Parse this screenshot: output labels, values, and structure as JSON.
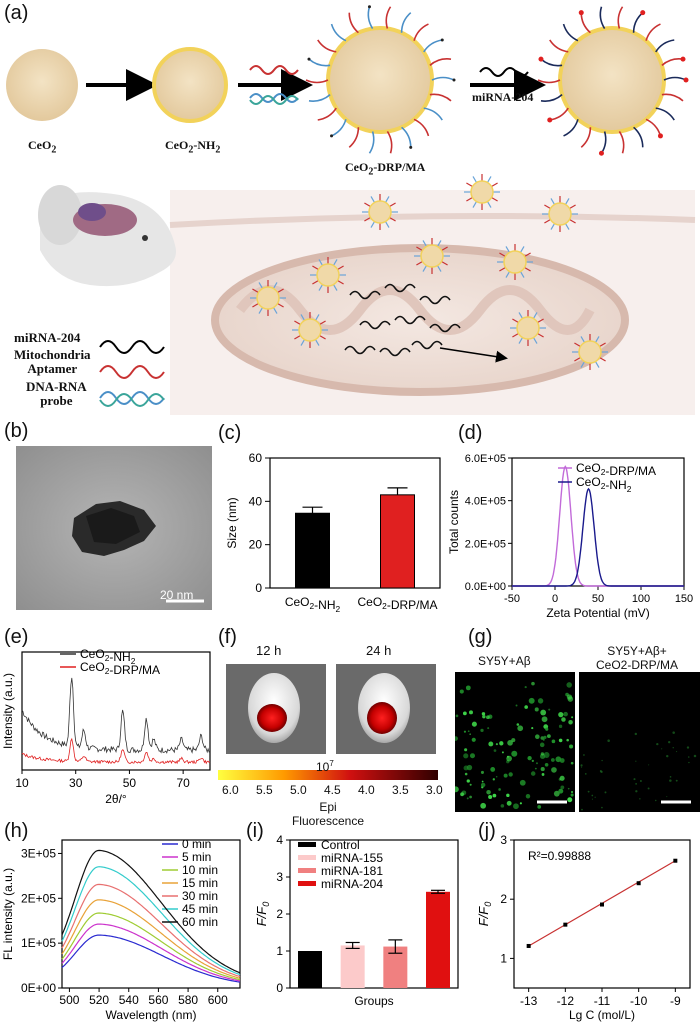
{
  "panel_labels": [
    "(a)",
    "(b)",
    "(c)",
    "(d)",
    "(e)",
    "(f)",
    "(g)",
    "(h)",
    "(i)",
    "(j)"
  ],
  "panel_a": {
    "stage_labels": [
      "CeO",
      "CeO",
      "CeO"
    ],
    "ceo2": {
      "base": "CeO",
      "sub": "2"
    },
    "ceo2_nh2": {
      "base": "CeO",
      "sub": "2",
      "suffix": "-NH",
      "sub2": "2"
    },
    "ceo2_drp": {
      "base": "CeO",
      "sub": "2",
      "suffix": "-DRP/MA"
    },
    "mirna_label": "miRNA-204",
    "legend": {
      "mirna": "miRNA-204",
      "mito_line1": "Mitochondria",
      "mito_line2": "Aptamer",
      "probe_line1": "DNA-RNA",
      "probe_line2": "probe"
    }
  },
  "panel_b": {
    "scale_bar": "20 nm"
  },
  "chart_data": [
    {
      "id": "c",
      "type": "bar",
      "categories": [
        "CeO2-NH2",
        "CeO2-DRP/MA"
      ],
      "values": [
        34.5,
        43
      ],
      "errors": [
        2.8,
        3.2
      ],
      "colors": [
        "#000000",
        "#e02020"
      ],
      "ylabel": "Size (nm)",
      "ylim": [
        0,
        60
      ],
      "yticks": [
        0,
        20,
        40,
        60
      ]
    },
    {
      "id": "d",
      "type": "line",
      "xlabel": "Zeta Potential (mV)",
      "ylabel": "Total counts",
      "xlim": [
        -50,
        150
      ],
      "ylim": [
        0,
        600000
      ],
      "xticks": [
        -50,
        0,
        50,
        100,
        150
      ],
      "yticks": [
        "0.0E+00",
        "2.0E+05",
        "4.0E+05",
        "6.0E+05"
      ],
      "series": [
        {
          "name": "CeO2-DRP/MA",
          "color": "#c26bd9",
          "peak_x": 12,
          "peak_y": 560000
        },
        {
          "name": "CeO2-NH2",
          "color": "#1a1a8c",
          "peak_x": 39,
          "peak_y": 455000
        }
      ]
    },
    {
      "id": "e",
      "type": "line",
      "xlabel": "2θ/°",
      "ylabel": "Intensity (a.u.)",
      "xlim": [
        10,
        80
      ],
      "xticks": [
        10,
        30,
        50,
        70
      ],
      "series": [
        {
          "name": "CeO2-NH2",
          "color": "#333333"
        },
        {
          "name": "CeO2-DRP/MA",
          "color": "#e02020"
        }
      ]
    },
    {
      "id": "h",
      "type": "line",
      "xlabel": "Wavelength (nm)",
      "ylabel": "FL intensity (a.u.)",
      "xlim": [
        495,
        615
      ],
      "ylim": [
        0,
        330000
      ],
      "xticks": [
        500,
        520,
        540,
        560,
        580,
        600
      ],
      "yticks": [
        "0E+00",
        "1E+05",
        "2E+05",
        "3E+05"
      ],
      "series": [
        {
          "name": "0 min",
          "color": "#2a2ad0",
          "peak": 120000
        },
        {
          "name": "5 min",
          "color": "#cc33cc",
          "peak": 145000
        },
        {
          "name": "10 min",
          "color": "#9fcc33",
          "peak": 170000
        },
        {
          "name": "15 min",
          "color": "#e8a238",
          "peak": 200000
        },
        {
          "name": "30 min",
          "color": "#e87070",
          "peak": 235000
        },
        {
          "name": "45 min",
          "color": "#33cccc",
          "peak": 275000
        },
        {
          "name": "60 min",
          "color": "#111111",
          "peak": 312000
        }
      ]
    },
    {
      "id": "i",
      "type": "bar",
      "categories": [
        "Control",
        "miRNA-155",
        "miRNA-181",
        "miRNA-204"
      ],
      "values": [
        1.0,
        1.15,
        1.12,
        2.6
      ],
      "errors": [
        0,
        0.08,
        0.18,
        0.04
      ],
      "colors": [
        "#000000",
        "#fccaca",
        "#f08080",
        "#e01010"
      ],
      "xlabel": "Groups",
      "ylabel": "F/F0",
      "ylim": [
        0,
        4
      ],
      "yticks": [
        0,
        1,
        2,
        3,
        4
      ]
    },
    {
      "id": "j",
      "type": "scatter",
      "x": [
        -13,
        -12,
        -11,
        -10,
        -9
      ],
      "y": [
        1.21,
        1.57,
        1.91,
        2.27,
        2.65
      ],
      "annotation": "R²=0.99888",
      "xlabel": "Lg C (mol/L)",
      "ylabel": "F/F0",
      "xlim": [
        -13.4,
        -8.6
      ],
      "ylim": [
        0.5,
        3
      ],
      "xticks": [
        -13,
        -12,
        -11,
        -10,
        -9
      ],
      "yticks": [
        1,
        2,
        3
      ]
    }
  ],
  "panel_f": {
    "times": [
      "12 h",
      "24 h"
    ],
    "colorbar_ticks": [
      "6.0",
      "5.5",
      "5.0",
      "4.5",
      "4.0",
      "3.5",
      "3.0"
    ],
    "colorbar_exp": "10",
    "colorbar_exp_sup": "7",
    "colorbar_title_1": "Epi",
    "colorbar_title_2": "Fluorescence"
  },
  "panel_g": {
    "left_title": "SY5Y+Aβ",
    "right_title_1": "SY5Y+Aβ+",
    "right_title_2": "CeO2-DRP/MA"
  }
}
